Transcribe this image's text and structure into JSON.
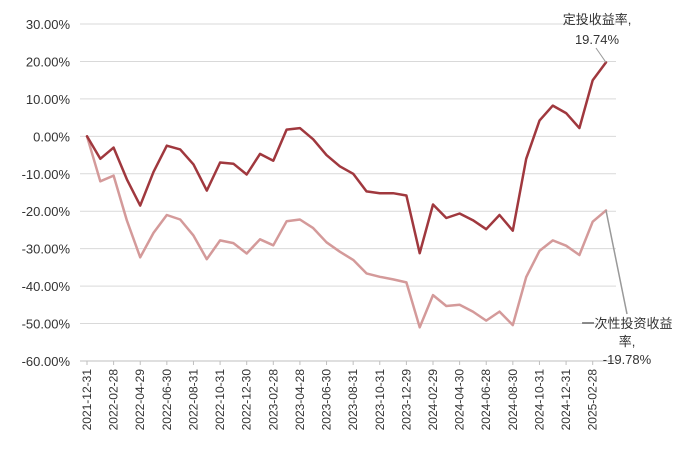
{
  "chart_data": {
    "type": "line",
    "ylim": [
      -60,
      30
    ],
    "yticks": [
      "30.00%",
      "20.00%",
      "10.00%",
      "0.00%",
      "-10.00%",
      "-20.00%",
      "-30.00%",
      "-40.00%",
      "-50.00%",
      "-60.00%"
    ],
    "ytick_values": [
      30,
      20,
      10,
      0,
      -10,
      -20,
      -30,
      -40,
      -50,
      -60
    ],
    "xtick_labels": [
      "2021-12-31",
      "2022-02-28",
      "2022-04-29",
      "2022-06-30",
      "2022-08-31",
      "2022-10-31",
      "2022-12-30",
      "2023-02-28",
      "2023-04-28",
      "2023-06-30",
      "2023-08-31",
      "2023-10-31",
      "2023-12-29",
      "2024-02-29",
      "2024-04-30",
      "2024-06-28",
      "2024-08-30",
      "2024-10-31",
      "2024-12-31",
      "2025-02-28"
    ],
    "grid": "horizontal",
    "series": [
      {
        "color": "#a0383e",
        "values": [
          0,
          -6,
          -3,
          -11.5,
          -18.5,
          -9.5,
          -2.5,
          -3.5,
          -7.5,
          -14.5,
          -7,
          -7.3,
          -10.2,
          -4.7,
          -6.5,
          1.8,
          2.2,
          -0.8,
          -5,
          -8,
          -10,
          -14.7,
          -15.2,
          -15.2,
          -15.8,
          -31.2,
          -18.2,
          -21.8,
          -20.6,
          -22.4,
          -24.8,
          -21,
          -25.2,
          -6,
          4.2,
          8.2,
          6.2,
          2.2,
          15,
          19.74
        ]
      },
      {
        "color": "#d49a9a",
        "values": [
          0,
          -12,
          -10.5,
          -22.5,
          -32.3,
          -25.8,
          -21,
          -22.2,
          -26.5,
          -32.8,
          -27.8,
          -28.5,
          -31.3,
          -27.5,
          -29.1,
          -22.7,
          -22.2,
          -24.5,
          -28.3,
          -30.8,
          -33,
          -36.6,
          -37.5,
          -38.2,
          -39,
          -51,
          -42.4,
          -45.3,
          -45,
          -46.8,
          -49.2,
          -46.8,
          -50.4,
          -37.6,
          -30.6,
          -27.8,
          -29.2,
          -31.7,
          -22.8,
          -19.78
        ]
      }
    ],
    "annotations": [
      {
        "line1": "定投收益率,",
        "line2": "19.74%"
      },
      {
        "line1": "一次性投资收益",
        "line2": "率,",
        "line3": "-19.78%"
      }
    ]
  }
}
